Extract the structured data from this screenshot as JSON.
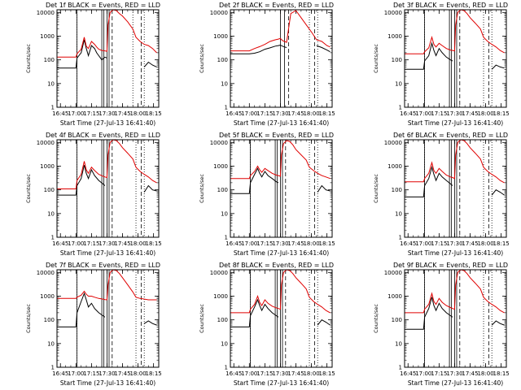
{
  "figure": {
    "ylabel": "Counts/sec",
    "xlabel": "Start Time (27-Jul-13 16:41:40)",
    "y_ticks": [
      "1",
      "10",
      "100",
      "1000",
      "10000"
    ],
    "x_ticks": [
      "16:45",
      "17:00",
      "17:15",
      "17:30",
      "17:45",
      "18:00",
      "18:15"
    ],
    "colors": {
      "events": "#000000",
      "lld": "#e00000",
      "axes": "#000000"
    }
  },
  "chart_data": [
    {
      "type": "line",
      "title": "Det 1f BLACK = Events, RED = LLD",
      "xlabel": "Start Time (27-Jul-13 16:41:40)",
      "ylabel": "Counts/sec",
      "yscale": "log",
      "ylim": [
        1,
        13000
      ],
      "xlim": [
        "16:41:40",
        "18:20:00"
      ],
      "x": [
        "16:42",
        "17:00",
        "17:01",
        "17:05",
        "17:08",
        "17:10",
        "17:12",
        "17:15",
        "17:18",
        "17:20",
        "17:22",
        "17:25",
        "17:28",
        "17:30",
        "17:31",
        "17:33",
        "17:36",
        "17:39",
        "17:42",
        "17:45",
        "17:50",
        "17:55",
        "17:58",
        "18:02",
        "18:06",
        "18:10",
        "18:14",
        "18:18"
      ],
      "series": [
        {
          "name": "Events",
          "values": [
            45,
            45,
            120,
            200,
            700,
            300,
            150,
            400,
            300,
            200,
            150,
            100,
            130,
            120,
            "gap",
            "gap",
            "gap",
            "gap",
            "gap",
            "gap",
            "gap",
            "gap",
            "gap",
            "gap",
            50,
            80,
            60,
            50
          ]
        },
        {
          "name": "LLD",
          "values": [
            130,
            130,
            180,
            280,
            900,
            380,
            300,
            600,
            450,
            350,
            280,
            250,
            240,
            230,
            3000,
            10000,
            13000,
            12000,
            9000,
            7000,
            4000,
            2000,
            900,
            600,
            450,
            400,
            300,
            200
          ]
        }
      ],
      "vlines_solid": [
        "17:01",
        "17:25",
        "17:27",
        "17:30",
        "17:32"
      ],
      "vlines_dashed": [
        "17:35",
        "18:03"
      ],
      "vlines_dotted": [
        "17:01",
        "17:55",
        "18:06"
      ]
    },
    {
      "type": "line",
      "title": "Det 2f BLACK = Events, RED = LLD",
      "xlabel": "Start Time (27-Jul-13 16:41:40)",
      "ylabel": "Counts/sec",
      "yscale": "log",
      "ylim": [
        1,
        13000
      ],
      "xlim": [
        "16:41:40",
        "18:20:00"
      ],
      "x": [
        "16:42",
        "17:00",
        "17:05",
        "17:10",
        "17:15",
        "17:20",
        "17:25",
        "17:28",
        "17:30",
        "17:32",
        "17:34",
        "17:36",
        "17:40",
        "17:45",
        "17:50",
        "17:55",
        "18:00",
        "18:05",
        "18:10",
        "18:15",
        "18:18"
      ],
      "series": [
        {
          "name": "Events",
          "values": [
            180,
            180,
            190,
            220,
            280,
            320,
            380,
            400,
            420,
            380,
            350,
            330,
            "gap",
            "gap",
            "gap",
            "gap",
            "gap",
            400,
            330,
            260,
            220
          ]
        },
        {
          "name": "LLD",
          "values": [
            240,
            240,
            300,
            360,
            450,
            600,
            700,
            750,
            800,
            650,
            600,
            550,
            9000,
            12000,
            6000,
            3000,
            1500,
            700,
            600,
            400,
            350
          ]
        }
      ],
      "vlines_solid": [
        "17:30",
        "17:34"
      ],
      "vlines_dashed": [
        "17:38",
        "18:03"
      ],
      "vlines_dotted": [
        "17:58",
        "18:06"
      ]
    },
    {
      "type": "line",
      "title": "Det 3f BLACK = Events, RED = LLD",
      "xlabel": "Start Time (27-Jul-13 16:41:40)",
      "ylabel": "Counts/sec",
      "yscale": "log",
      "ylim": [
        1,
        13000
      ],
      "xlim": [
        "16:41:40",
        "18:20:00"
      ],
      "x": [
        "16:42",
        "17:00",
        "17:01",
        "17:05",
        "17:08",
        "17:10",
        "17:12",
        "17:15",
        "17:18",
        "17:22",
        "17:26",
        "17:28",
        "17:30",
        "17:31",
        "17:33",
        "17:36",
        "17:39",
        "17:42",
        "17:45",
        "17:50",
        "17:55",
        "17:58",
        "18:02",
        "18:06",
        "18:10",
        "18:14",
        "18:18"
      ],
      "series": [
        {
          "name": "Events",
          "values": [
            40,
            40,
            90,
            150,
            500,
            250,
            150,
            300,
            200,
            130,
            100,
            90,
            "gap",
            "gap",
            "gap",
            "gap",
            "gap",
            "gap",
            "gap",
            "gap",
            "gap",
            "gap",
            "gap",
            40,
            60,
            50,
            45
          ]
        },
        {
          "name": "LLD",
          "values": [
            180,
            180,
            220,
            320,
            900,
            450,
            350,
            500,
            400,
            300,
            260,
            250,
            240,
            3000,
            10000,
            13000,
            12000,
            9000,
            6000,
            3500,
            2000,
            900,
            600,
            450,
            350,
            250,
            200
          ]
        }
      ],
      "vlines_solid": [
        "17:01",
        "17:25",
        "17:27",
        "17:30",
        "17:32"
      ],
      "vlines_dashed": [
        "17:35",
        "18:03"
      ],
      "vlines_dotted": [
        "17:01",
        "17:58",
        "18:06"
      ]
    },
    {
      "type": "line",
      "title": "Det 4f BLACK = Events, RED = LLD",
      "xlabel": "Start Time (27-Jul-13 16:41:40)",
      "ylabel": "Counts/sec",
      "yscale": "log",
      "ylim": [
        1,
        13000
      ],
      "xlim": [
        "16:41:40",
        "18:20:00"
      ],
      "x": [
        "16:42",
        "17:00",
        "17:01",
        "17:05",
        "17:08",
        "17:10",
        "17:12",
        "17:15",
        "17:18",
        "17:22",
        "17:26",
        "17:28",
        "17:30",
        "17:31",
        "17:33",
        "17:36",
        "17:39",
        "17:42",
        "17:45",
        "17:50",
        "17:55",
        "17:58",
        "18:02",
        "18:06",
        "18:10",
        "18:14",
        "18:18"
      ],
      "series": [
        {
          "name": "Events",
          "values": [
            60,
            60,
            150,
            300,
            1100,
            500,
            300,
            700,
            400,
            250,
            180,
            150,
            "gap",
            "gap",
            "gap",
            "gap",
            "gap",
            "gap",
            "gap",
            "gap",
            "gap",
            "gap",
            "gap",
            80,
            150,
            100,
            90
          ]
        },
        {
          "name": "LLD",
          "values": [
            110,
            110,
            250,
            450,
            1600,
            700,
            500,
            900,
            650,
            450,
            380,
            350,
            330,
            3000,
            10000,
            13000,
            12000,
            9000,
            6000,
            3500,
            2000,
            900,
            600,
            450,
            350,
            250,
            200
          ]
        }
      ],
      "vlines_solid": [
        "17:01",
        "17:25",
        "17:27",
        "17:30",
        "17:32"
      ],
      "vlines_dashed": [
        "17:35",
        "18:03"
      ],
      "vlines_dotted": [
        "17:01",
        "17:58",
        "18:06"
      ]
    },
    {
      "type": "line",
      "title": "Det 5f BLACK = Events, RED = LLD",
      "xlabel": "Start Time (27-Jul-13 16:41:40)",
      "ylabel": "Counts/sec",
      "yscale": "log",
      "ylim": [
        1,
        13000
      ],
      "xlim": [
        "16:41:40",
        "18:20:00"
      ],
      "x": [
        "16:42",
        "17:00",
        "17:01",
        "17:05",
        "17:08",
        "17:10",
        "17:12",
        "17:15",
        "17:18",
        "17:22",
        "17:26",
        "17:28",
        "17:30",
        "17:31",
        "17:33",
        "17:36",
        "17:39",
        "17:42",
        "17:45",
        "17:50",
        "17:55",
        "17:58",
        "18:02",
        "18:06",
        "18:10",
        "18:14",
        "18:18"
      ],
      "series": [
        {
          "name": "Events",
          "values": [
            70,
            70,
            200,
            450,
            800,
            500,
            350,
            600,
            400,
            300,
            220,
            200,
            "gap",
            "gap",
            "gap",
            "gap",
            "gap",
            "gap",
            "gap",
            "gap",
            "gap",
            "gap",
            "gap",
            80,
            150,
            100,
            90
          ]
        },
        {
          "name": "LLD",
          "values": [
            300,
            300,
            400,
            600,
            1000,
            700,
            550,
            800,
            650,
            500,
            420,
            400,
            380,
            3000,
            9000,
            12000,
            11000,
            8000,
            5000,
            3000,
            1800,
            900,
            650,
            500,
            400,
            350,
            300
          ]
        }
      ],
      "vlines_solid": [
        "17:01",
        "17:25",
        "17:27",
        "17:30",
        "17:32"
      ],
      "vlines_dashed": [
        "17:35",
        "18:03"
      ],
      "vlines_dotted": [
        "17:01",
        "17:58",
        "18:06"
      ]
    },
    {
      "type": "line",
      "title": "Det 6f BLACK = Events, RED = LLD",
      "xlabel": "Start Time (27-Jul-13 16:41:40)",
      "ylabel": "Counts/sec",
      "yscale": "log",
      "ylim": [
        1,
        13000
      ],
      "xlim": [
        "16:41:40",
        "18:20:00"
      ],
      "x": [
        "16:42",
        "17:00",
        "17:01",
        "17:05",
        "17:08",
        "17:10",
        "17:12",
        "17:15",
        "17:18",
        "17:22",
        "17:26",
        "17:28",
        "17:30",
        "17:31",
        "17:33",
        "17:36",
        "17:39",
        "17:42",
        "17:45",
        "17:50",
        "17:55",
        "17:58",
        "18:02",
        "18:06",
        "18:10",
        "18:14",
        "18:18"
      ],
      "series": [
        {
          "name": "Events",
          "values": [
            50,
            50,
            150,
            300,
            900,
            450,
            250,
            500,
            350,
            250,
            180,
            150,
            "gap",
            "gap",
            "gap",
            "gap",
            "gap",
            "gap",
            "gap",
            "gap",
            "gap",
            "gap",
            "gap",
            60,
            100,
            80,
            60
          ]
        },
        {
          "name": "LLD",
          "values": [
            220,
            220,
            300,
            500,
            1400,
            650,
            500,
            800,
            600,
            420,
            350,
            330,
            300,
            3000,
            10000,
            13000,
            12000,
            9000,
            6000,
            3500,
            2000,
            900,
            600,
            450,
            350,
            250,
            200
          ]
        }
      ],
      "vlines_solid": [
        "17:01",
        "17:25",
        "17:27",
        "17:30",
        "17:32"
      ],
      "vlines_dashed": [
        "17:35",
        "18:03"
      ],
      "vlines_dotted": [
        "17:01",
        "17:58",
        "18:06"
      ]
    },
    {
      "type": "line",
      "title": "Det 7f BLACK = Events, RED = LLD",
      "xlabel": "Start Time (27-Jul-13 16:41:40)",
      "ylabel": "Counts/sec",
      "yscale": "log",
      "ylim": [
        1,
        13000
      ],
      "xlim": [
        "16:41:40",
        "18:20:00"
      ],
      "x": [
        "16:42",
        "17:00",
        "17:01",
        "17:05",
        "17:08",
        "17:10",
        "17:12",
        "17:15",
        "17:18",
        "17:22",
        "17:26",
        "17:28",
        "17:30",
        "17:31",
        "17:33",
        "17:36",
        "17:39",
        "17:42",
        "17:45",
        "17:50",
        "17:55",
        "17:58",
        "18:02",
        "18:06",
        "18:10",
        "18:14",
        "18:18"
      ],
      "series": [
        {
          "name": "Events",
          "values": [
            50,
            50,
            200,
            600,
            1300,
            700,
            350,
            500,
            300,
            200,
            150,
            130,
            "gap",
            "gap",
            "gap",
            "gap",
            "gap",
            "gap",
            "gap",
            "gap",
            "gap",
            "gap",
            "gap",
            70,
            90,
            70,
            60
          ]
        },
        {
          "name": "LLD",
          "values": [
            800,
            800,
            900,
            1100,
            1600,
            1200,
            1000,
            1000,
            900,
            800,
            750,
            720,
            700,
            3000,
            10000,
            13000,
            12000,
            9000,
            6000,
            3000,
            1500,
            900,
            800,
            750,
            700,
            700,
            700
          ]
        }
      ],
      "vlines_solid": [
        "17:01",
        "17:25",
        "17:27",
        "17:30",
        "17:32"
      ],
      "vlines_dashed": [
        "17:35",
        "18:03"
      ],
      "vlines_dotted": [
        "17:01",
        "17:58",
        "18:06"
      ]
    },
    {
      "type": "line",
      "title": "Det 8f BLACK = Events, RED = LLD",
      "xlabel": "Start Time (27-Jul-13 16:41:40)",
      "ylabel": "Counts/sec",
      "yscale": "log",
      "ylim": [
        1,
        13000
      ],
      "xlim": [
        "16:41:40",
        "18:20:00"
      ],
      "x": [
        "16:42",
        "17:00",
        "17:01",
        "17:05",
        "17:08",
        "17:10",
        "17:12",
        "17:15",
        "17:18",
        "17:22",
        "17:26",
        "17:28",
        "17:30",
        "17:31",
        "17:33",
        "17:36",
        "17:39",
        "17:42",
        "17:45",
        "17:50",
        "17:55",
        "17:58",
        "18:02",
        "18:06",
        "18:10",
        "18:14",
        "18:18"
      ],
      "series": [
        {
          "name": "Events",
          "values": [
            50,
            50,
            150,
            350,
            700,
            400,
            250,
            450,
            300,
            200,
            150,
            130,
            "gap",
            "gap",
            "gap",
            "gap",
            "gap",
            "gap",
            "gap",
            "gap",
            "gap",
            "gap",
            "gap",
            60,
            100,
            80,
            60
          ]
        },
        {
          "name": "LLD",
          "values": [
            200,
            200,
            280,
            450,
            1000,
            550,
            400,
            700,
            500,
            380,
            320,
            300,
            280,
            3000,
            10000,
            13000,
            12000,
            9000,
            6000,
            3500,
            2000,
            900,
            600,
            450,
            350,
            250,
            200
          ]
        }
      ],
      "vlines_solid": [
        "17:01",
        "17:25",
        "17:27",
        "17:30",
        "17:32"
      ],
      "vlines_dashed": [
        "17:35",
        "18:03"
      ],
      "vlines_dotted": [
        "17:01",
        "17:58",
        "18:06"
      ]
    },
    {
      "type": "line",
      "title": "Det 9f BLACK = Events, RED = LLD",
      "xlabel": "Start Time (27-Jul-13 16:41:40)",
      "ylabel": "Counts/sec",
      "yscale": "log",
      "ylim": [
        1,
        13000
      ],
      "xlim": [
        "16:41:40",
        "18:20:00"
      ],
      "x": [
        "16:42",
        "17:00",
        "17:01",
        "17:05",
        "17:08",
        "17:10",
        "17:12",
        "17:15",
        "17:18",
        "17:22",
        "17:26",
        "17:28",
        "17:30",
        "17:31",
        "17:33",
        "17:36",
        "17:39",
        "17:42",
        "17:45",
        "17:50",
        "17:55",
        "17:58",
        "18:02",
        "18:06",
        "18:10",
        "18:14",
        "18:18"
      ],
      "series": [
        {
          "name": "Events",
          "values": [
            40,
            40,
            130,
            300,
            900,
            400,
            250,
            500,
            300,
            200,
            150,
            130,
            "gap",
            "gap",
            "gap",
            "gap",
            "gap",
            "gap",
            "gap",
            "gap",
            "gap",
            "gap",
            "gap",
            60,
            90,
            70,
            60
          ]
        },
        {
          "name": "LLD",
          "values": [
            200,
            200,
            280,
            450,
            1300,
            600,
            450,
            800,
            550,
            400,
            330,
            300,
            280,
            3000,
            10000,
            13000,
            12000,
            9000,
            6000,
            3500,
            2000,
            900,
            600,
            450,
            350,
            250,
            200
          ]
        }
      ],
      "vlines_solid": [
        "17:01",
        "17:25",
        "17:27",
        "17:30",
        "17:32"
      ],
      "vlines_dashed": [
        "17:35",
        "18:03"
      ],
      "vlines_dotted": [
        "17:01",
        "17:58",
        "18:06"
      ]
    }
  ]
}
